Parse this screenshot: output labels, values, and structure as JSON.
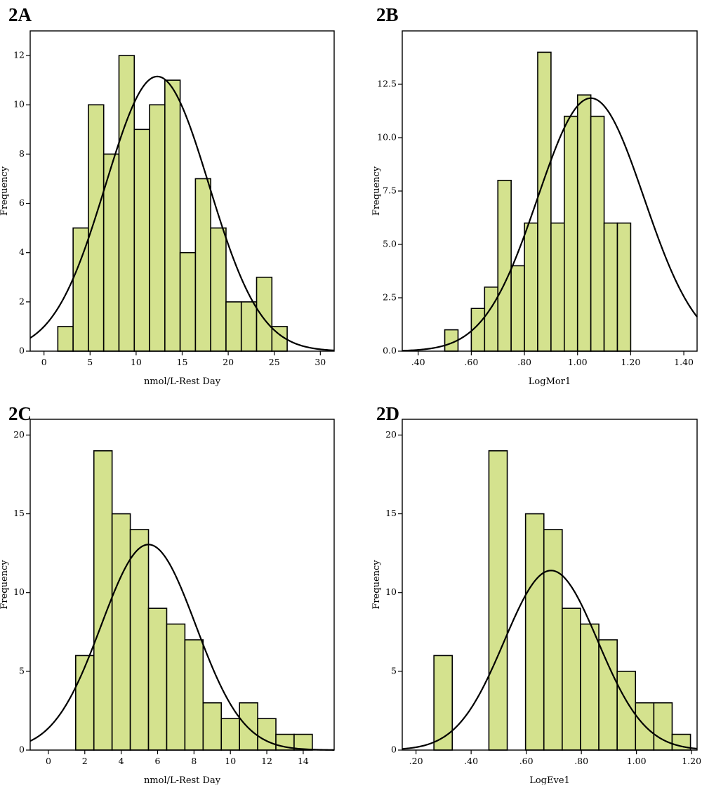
{
  "figure": {
    "bar_fill": "#d4e28e",
    "bar_stroke": "#000000",
    "curve_color": "#000000"
  },
  "chart_data": [
    {
      "panel_label": "2A",
      "type": "bar",
      "title": "",
      "xlabel": "nmol/L-Rest Day",
      "ylabel": "Frequency",
      "xlim": [
        -1.5,
        31.5
      ],
      "ylim": [
        0,
        13
      ],
      "xticks": [
        0,
        5,
        10,
        15,
        20,
        25,
        30
      ],
      "xtick_labels": [
        "0",
        "5",
        "10",
        "15",
        "20",
        "25",
        "30"
      ],
      "yticks": [
        0,
        2,
        4,
        6,
        8,
        10,
        12
      ],
      "ytick_labels": [
        "0",
        "2",
        "4",
        "6",
        "8",
        "10",
        "12"
      ],
      "bin_start": 1.5,
      "bin_width": 1.66,
      "values": [
        1,
        5,
        10,
        8,
        12,
        9,
        10,
        11,
        4,
        7,
        5,
        2,
        2,
        3,
        1
      ],
      "normal_curve": {
        "mean": 12.3,
        "sd": 5.6,
        "peak": 11.15
      }
    },
    {
      "panel_label": "2B",
      "type": "bar",
      "title": "",
      "xlabel": "LogMor1",
      "ylabel": "Frequency",
      "xlim": [
        0.34,
        1.45
      ],
      "ylim": [
        0,
        15
      ],
      "xticks": [
        0.4,
        0.6,
        0.8,
        1.0,
        1.2,
        1.4
      ],
      "xtick_labels": [
        ".40",
        ".60",
        ".80",
        "1.00",
        "1.20",
        "1.40"
      ],
      "yticks": [
        0,
        2.5,
        5,
        7.5,
        10,
        12.5
      ],
      "ytick_labels": [
        "0.0",
        "2.5",
        "5.0",
        "7.5",
        "10.0",
        "12.5"
      ],
      "bin_start": 0.4,
      "bin_width": 0.05,
      "values": [
        0,
        0,
        1,
        0,
        2,
        3,
        8,
        4,
        6,
        14,
        6,
        11,
        12,
        11,
        6,
        6
      ],
      "normal_curve": {
        "mean": 1.05,
        "sd": 0.2,
        "peak": 11.85
      }
    },
    {
      "panel_label": "2C",
      "type": "bar",
      "title": "",
      "xlabel": "nmol/L-Rest Day",
      "ylabel": "Frequency",
      "xlim": [
        -1,
        15.7
      ],
      "ylim": [
        0,
        21
      ],
      "xticks": [
        0,
        2,
        4,
        6,
        8,
        10,
        12,
        14
      ],
      "xtick_labels": [
        "0",
        "2",
        "4",
        "6",
        "8",
        "10",
        "12",
        "14"
      ],
      "yticks": [
        0,
        5,
        10,
        15,
        20
      ],
      "ytick_labels": [
        "0",
        "5",
        "10",
        "15",
        "20"
      ],
      "bin_start": 1.5,
      "bin_width": 1.0,
      "values": [
        6,
        19,
        15,
        14,
        9,
        8,
        7,
        3,
        2,
        3,
        2,
        1,
        1
      ],
      "normal_curve": {
        "mean": 5.5,
        "sd": 2.6,
        "peak": 13.05
      }
    },
    {
      "panel_label": "2D",
      "type": "bar",
      "title": "",
      "xlabel": "LogEve1",
      "ylabel": "Frequency",
      "xlim": [
        0.15,
        1.22
      ],
      "ylim": [
        0,
        21
      ],
      "xticks": [
        0.2,
        0.4,
        0.6,
        0.8,
        1.0,
        1.2
      ],
      "xtick_labels": [
        ".20",
        ".40",
        ".60",
        ".80",
        "1.00",
        "1.20"
      ],
      "yticks": [
        0,
        5,
        10,
        15,
        20
      ],
      "ytick_labels": [
        "0",
        "5",
        "10",
        "15",
        "20"
      ],
      "bin_start": 0.265,
      "bin_width": 0.0665,
      "values": [
        6,
        0,
        0,
        19,
        0,
        15,
        14,
        9,
        8,
        7,
        5,
        3,
        3,
        1
      ],
      "normal_curve": {
        "mean": 0.69,
        "sd": 0.17,
        "peak": 11.4
      }
    }
  ]
}
